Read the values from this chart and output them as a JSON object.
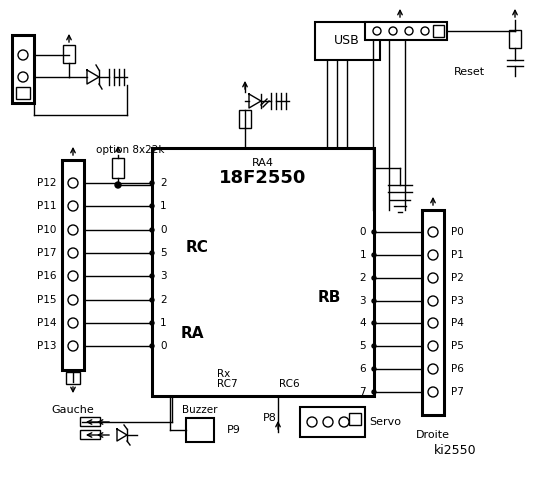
{
  "bg_color": "#ffffff",
  "title": "18F2550",
  "ra_label": "RA",
  "rc_label": "RC",
  "rb_label": "RB",
  "ra4_label": "RA4",
  "rc6_label": "RC6",
  "rx_label": "Rx",
  "rc7_label": "RC7",
  "left_pins": [
    "P12",
    "P11",
    "P10",
    "P17",
    "P16",
    "P15",
    "P14",
    "P13"
  ],
  "left_pin_nums": [
    "2",
    "1",
    "0",
    "5",
    "3",
    "2",
    "1",
    "0"
  ],
  "right_pins": [
    "P0",
    "P1",
    "P2",
    "P3",
    "P4",
    "P5",
    "P6",
    "P7"
  ],
  "right_pin_nums": [
    "0",
    "1",
    "2",
    "3",
    "4",
    "5",
    "6",
    "7"
  ],
  "gauche_label": "Gauche",
  "droite_label": "Droite",
  "servo_label": "Servo",
  "buzzer_label": "Buzzer",
  "usb_label": "USB",
  "reset_label": "Reset",
  "option_label": "option 8x22k",
  "ki_label": "ki2550",
  "p8_label": "P8",
  "p9_label": "P9",
  "ic_img": [
    152,
    148,
    222,
    248
  ],
  "figw": 5.53,
  "figh": 4.8,
  "dpi": 100
}
